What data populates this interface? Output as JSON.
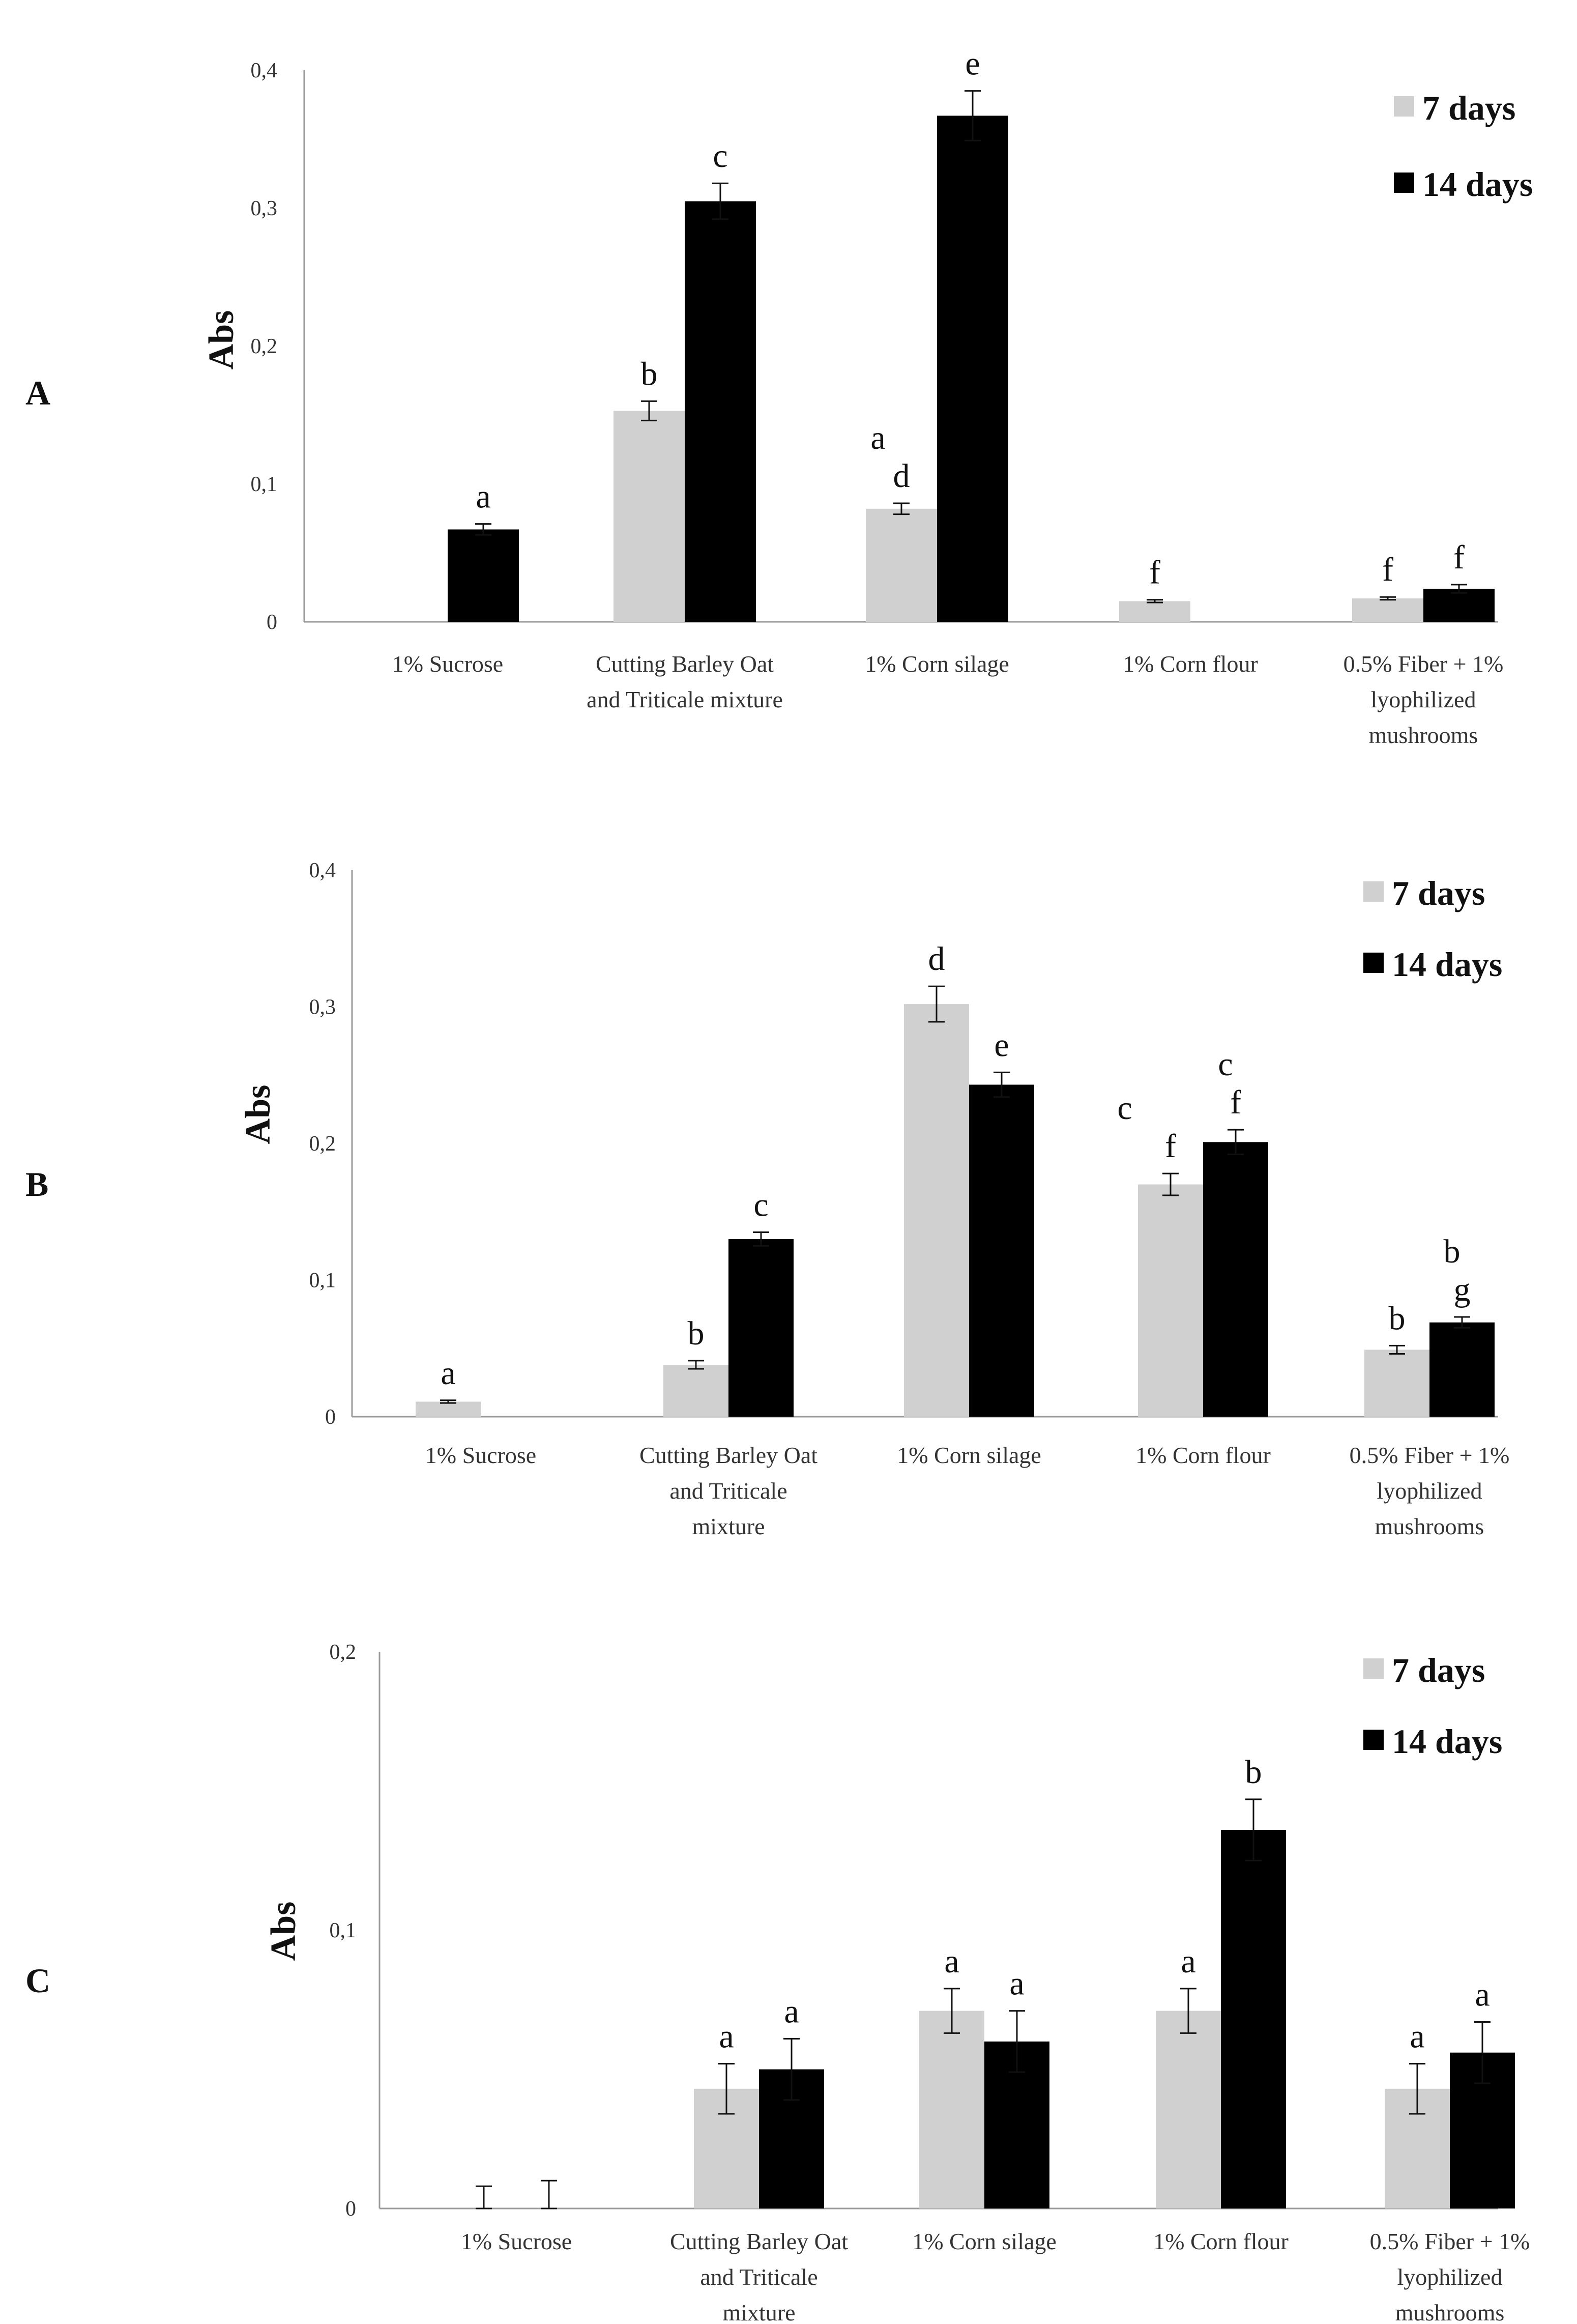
{
  "colors": {
    "days7": "#d0d0d0",
    "days14": "#000000",
    "axis": "#9a9a9a",
    "text": "#111111"
  },
  "chart_data": [
    {
      "type": "bar",
      "panel": "A",
      "ylabel": "Abs",
      "ylim": [
        0,
        0.4
      ],
      "yticks": [
        "0",
        "0,1",
        "0,2",
        "0,3",
        "0,4"
      ],
      "categories": [
        [
          "1% Sucrose"
        ],
        [
          "Cutting Barley Oat",
          "and Triticale mixture"
        ],
        [
          "1% Corn silage"
        ],
        [
          "1% Corn flour"
        ],
        [
          "0.5% Fiber + 1%",
          "lyophilized",
          "mushrooms"
        ]
      ],
      "legend": [
        "7 days",
        "14 days"
      ],
      "series": [
        {
          "name": "7 days",
          "values": [
            0,
            0.153,
            0.082,
            0.015,
            0.017
          ],
          "errors": [
            0,
            0.007,
            0.004,
            0.001,
            0.001
          ],
          "letters": [
            "",
            "b",
            "d",
            "f",
            "f"
          ],
          "extra_letters": [
            "",
            "",
            "a",
            "",
            ""
          ]
        },
        {
          "name": "14 days",
          "values": [
            0.067,
            0.305,
            0.367,
            0,
            0.024
          ],
          "errors": [
            0.004,
            0.013,
            0.018,
            0,
            0.003
          ],
          "letters": [
            "a",
            "c",
            "e",
            "",
            "f"
          ],
          "extra_letters": [
            "",
            "",
            "",
            "",
            ""
          ]
        }
      ]
    },
    {
      "type": "bar",
      "panel": "B",
      "ylabel": "Abs",
      "ylim": [
        0,
        0.4
      ],
      "yticks": [
        "0",
        "0,1",
        "0,2",
        "0,3",
        "0,4"
      ],
      "categories": [
        [
          "1% Sucrose"
        ],
        [
          "Cutting Barley Oat",
          "and Triticale",
          "mixture"
        ],
        [
          "1% Corn silage"
        ],
        [
          "1% Corn flour"
        ],
        [
          "0.5% Fiber + 1%",
          "lyophilized",
          "mushrooms"
        ]
      ],
      "legend": [
        "7 days",
        "14 days"
      ],
      "series": [
        {
          "name": "7 days",
          "values": [
            0.011,
            0.038,
            0.302,
            0.17,
            0.049
          ],
          "errors": [
            0.001,
            0.003,
            0.013,
            0.008,
            0.003
          ],
          "letters": [
            "a",
            "b",
            "d",
            "f",
            "b"
          ],
          "extra_letters": [
            "",
            "",
            "",
            "c",
            ""
          ]
        },
        {
          "name": "14 days",
          "values": [
            0,
            0.13,
            0.243,
            0.201,
            0.069
          ],
          "errors": [
            0,
            0.005,
            0.009,
            0.009,
            0.004
          ],
          "letters": [
            "",
            "c",
            "e",
            "f",
            "g"
          ],
          "extra_letters": [
            "",
            "",
            "",
            "c",
            "b"
          ]
        }
      ]
    },
    {
      "type": "bar",
      "panel": "C",
      "ylabel": "Abs",
      "ylim": [
        0,
        0.2
      ],
      "yticks": [
        "0",
        "0,1",
        "0,2"
      ],
      "categories": [
        [
          "1% Sucrose"
        ],
        [
          "Cutting Barley Oat",
          "and Triticale",
          "mixture"
        ],
        [
          "1% Corn silage"
        ],
        [
          "1% Corn flour"
        ],
        [
          "0.5% Fiber + 1%",
          "lyophilized",
          "mushrooms"
        ]
      ],
      "legend": [
        "7 days",
        "14 days"
      ],
      "series": [
        {
          "name": "7 days",
          "values": [
            0,
            0.043,
            0.071,
            0.071,
            0.043
          ],
          "errors": [
            0.008,
            0.009,
            0.008,
            0.008,
            0.009
          ],
          "letters": [
            "",
            "a",
            "a",
            "a",
            "a"
          ],
          "extra_letters": [
            "",
            "",
            "",
            "",
            ""
          ]
        },
        {
          "name": "14 days",
          "values": [
            0,
            0.05,
            0.06,
            0.136,
            0.056
          ],
          "errors": [
            0.01,
            0.011,
            0.011,
            0.011,
            0.011
          ],
          "letters": [
            "",
            "a",
            "a",
            "b",
            "a"
          ],
          "extra_letters": [
            "",
            "",
            "",
            "",
            ""
          ]
        }
      ]
    }
  ]
}
